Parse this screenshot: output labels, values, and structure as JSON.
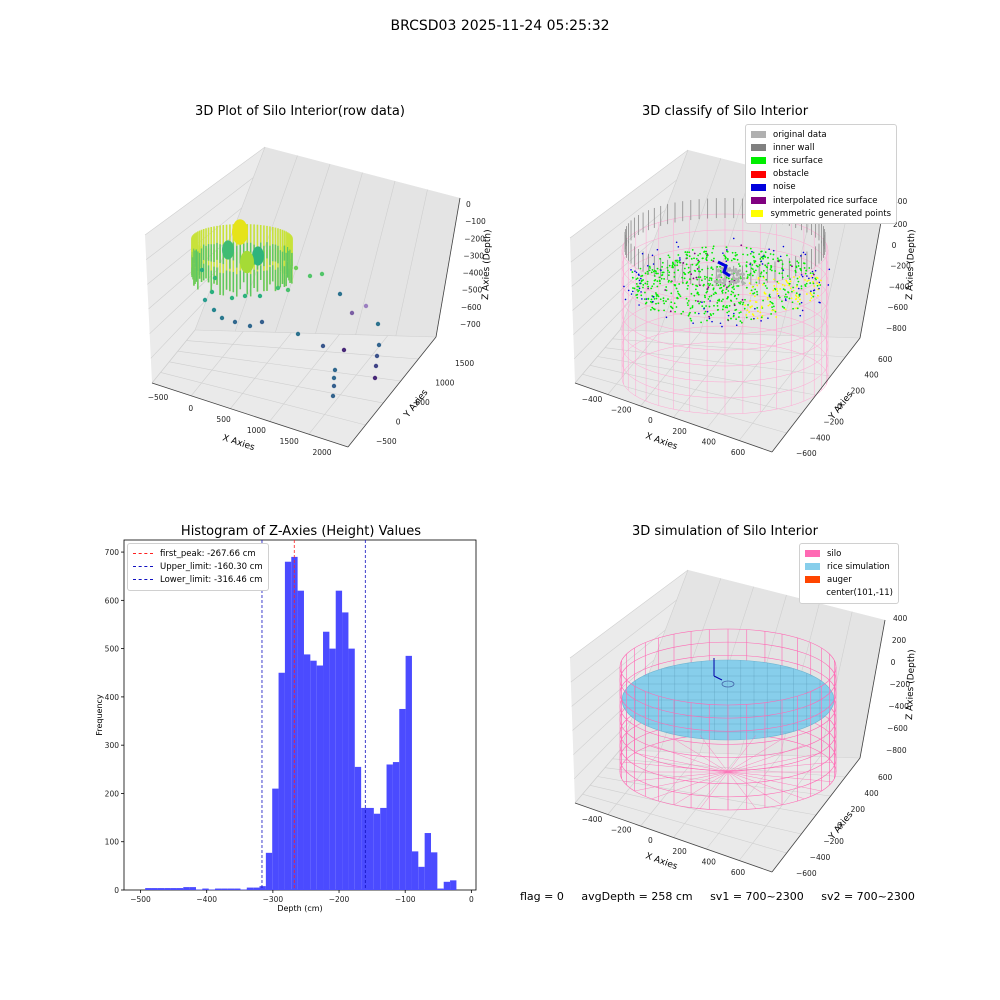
{
  "suptitle": "BRCSD03 2025-11-24 05:25:32",
  "footer": {
    "flag": "flag = 0",
    "avg": "avgDepth = 258 cm",
    "sv1": "sv1 = 700~2300",
    "sv2": "sv2 = 700~2300"
  },
  "colors": {
    "hist_bar": "#4b4bff",
    "first_peak": "#ff2020",
    "limits": "#1010c0",
    "silo": "#ff69b4",
    "rice_simulation": "#87ceeb",
    "auger": "#ff4500"
  },
  "panels": {
    "raw": {
      "title": "3D Plot of Silo Interior(row data)",
      "xlabel": "X Axies",
      "ylabel": "Y Axies",
      "zlabel": "Z Axies (Depth)",
      "xticks": [
        "−500",
        "0",
        "500",
        "1000",
        "1500",
        "2000"
      ],
      "yticks": [
        "−500",
        "0",
        "500",
        "1000",
        "1500"
      ],
      "zticks": [
        "0",
        "−100",
        "−200",
        "−300",
        "−400",
        "−500",
        "−600",
        "−700"
      ]
    },
    "classify": {
      "title": "3D classify of Silo Interior",
      "xlabel": "X Axies",
      "ylabel": "Y Axies",
      "zlabel": "Z Axies (Depth)",
      "xticks": [
        "−400",
        "−200",
        "0",
        "200",
        "400",
        "600"
      ],
      "yticks": [
        "−600",
        "−400",
        "−200",
        "0",
        "200",
        "400",
        "600"
      ],
      "zticks": [
        "200",
        "0",
        "−200",
        "−400",
        "−600",
        "−800"
      ],
      "ztick_top": "400",
      "legend": [
        {
          "label": "original data",
          "color": "#b0b0b0"
        },
        {
          "label": "inner wall",
          "color": "#808080"
        },
        {
          "label": "rice surface",
          "color": "#00ee00"
        },
        {
          "label": "obstacle",
          "color": "#ff0000"
        },
        {
          "label": "noise",
          "color": "#0000dd"
        },
        {
          "label": "interpolated rice surface",
          "color": "#800080"
        },
        {
          "label": "symmetric generated points",
          "color": "#ffff00"
        }
      ]
    },
    "simulation": {
      "title": "3D simulation of Silo Interior",
      "xlabel": "X Axies",
      "ylabel": "Y Axies",
      "zlabel": "Z Axies (Depth)",
      "xticks": [
        "−400",
        "−200",
        "0",
        "200",
        "400",
        "600"
      ],
      "yticks": [
        "−600",
        "−400",
        "−200",
        "0",
        "200",
        "400",
        "600"
      ],
      "zticks": [
        "400",
        "200",
        "0",
        "−200",
        "−400",
        "−600",
        "−800"
      ],
      "legend": [
        {
          "label": "silo",
          "color": "#ff69b4"
        },
        {
          "label": "rice simulation",
          "color": "#87ceeb"
        },
        {
          "label": "auger",
          "color": "#ff4500"
        },
        {
          "label": "center(101,-11)",
          "color": ""
        }
      ]
    }
  },
  "chart_data": {
    "type": "bar",
    "title": "Histogram of Z-Axies (Height) Values",
    "xlabel": "Depth (cm)",
    "ylabel": "Frequency",
    "xlim": [
      -525,
      7
    ],
    "ylim": [
      0,
      725
    ],
    "xticks": [
      -500,
      -400,
      -300,
      -200,
      -100,
      0
    ],
    "yticks": [
      0,
      100,
      200,
      300,
      400,
      500,
      600,
      700
    ],
    "bin_width": 9.6,
    "bins": [
      {
        "x0": -493,
        "count": 4
      },
      {
        "x0": -483.4,
        "count": 4
      },
      {
        "x0": -473.8,
        "count": 4
      },
      {
        "x0": -464.2,
        "count": 4
      },
      {
        "x0": -454.6,
        "count": 4
      },
      {
        "x0": -445,
        "count": 4
      },
      {
        "x0": -435.4,
        "count": 6
      },
      {
        "x0": -425.8,
        "count": 6
      },
      {
        "x0": -416.2,
        "count": 1
      },
      {
        "x0": -406.6,
        "count": 3
      },
      {
        "x0": -397,
        "count": 1
      },
      {
        "x0": -387.4,
        "count": 3
      },
      {
        "x0": -377.8,
        "count": 3
      },
      {
        "x0": -368.2,
        "count": 3
      },
      {
        "x0": -358.6,
        "count": 3
      },
      {
        "x0": -349,
        "count": 1
      },
      {
        "x0": -339.4,
        "count": 5
      },
      {
        "x0": -329.8,
        "count": 5
      },
      {
        "x0": -320.2,
        "count": 8
      },
      {
        "x0": -310.6,
        "count": 77
      },
      {
        "x0": -301,
        "count": 210
      },
      {
        "x0": -291.4,
        "count": 450
      },
      {
        "x0": -281.8,
        "count": 680
      },
      {
        "x0": -272.2,
        "count": 690
      },
      {
        "x0": -262.6,
        "count": 620
      },
      {
        "x0": -253,
        "count": 488
      },
      {
        "x0": -243.4,
        "count": 475
      },
      {
        "x0": -233.8,
        "count": 465
      },
      {
        "x0": -224.2,
        "count": 535
      },
      {
        "x0": -214.6,
        "count": 500
      },
      {
        "x0": -205,
        "count": 620
      },
      {
        "x0": -195.4,
        "count": 575
      },
      {
        "x0": -185.8,
        "count": 500
      },
      {
        "x0": -176.2,
        "count": 255
      },
      {
        "x0": -166.6,
        "count": 170
      },
      {
        "x0": -157,
        "count": 170
      },
      {
        "x0": -147.4,
        "count": 158
      },
      {
        "x0": -137.8,
        "count": 170
      },
      {
        "x0": -128.2,
        "count": 260
      },
      {
        "x0": -118.6,
        "count": 265
      },
      {
        "x0": -109,
        "count": 375
      },
      {
        "x0": -99.4,
        "count": 485
      },
      {
        "x0": -89.8,
        "count": 80
      },
      {
        "x0": -80.2,
        "count": 48
      },
      {
        "x0": -70.6,
        "count": 118
      },
      {
        "x0": -61,
        "count": 78
      },
      {
        "x0": -51.4,
        "count": 3
      },
      {
        "x0": -41.8,
        "count": 17
      },
      {
        "x0": -32.2,
        "count": 20
      }
    ],
    "vlines": [
      {
        "name": "first_peak: -267.66 cm",
        "x": -267.66,
        "color": "#ff2020"
      },
      {
        "name": "Upper_limit: -160.30 cm",
        "x": -160.3,
        "color": "#1010c0"
      },
      {
        "name": "Lower_limit: -316.46 cm",
        "x": -316.46,
        "color": "#1010c0"
      }
    ],
    "legend_position": "upper-left"
  }
}
